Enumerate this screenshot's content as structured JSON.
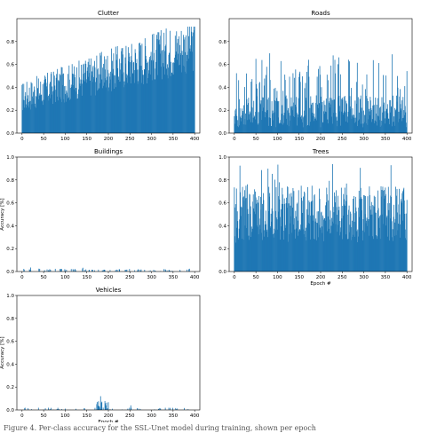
{
  "figure": {
    "caption": "Figure 4. Per-class accuracy for the SSL-Unet model during training, shown per epoch",
    "bar_color": "#1f77b4"
  },
  "chart_data": [
    {
      "type": "bar",
      "title": "Clutter",
      "xlabel": "",
      "ylabel": "",
      "xlim": [
        -12,
        412
      ],
      "ylim": [
        0,
        1.0
      ],
      "xticks": [
        0,
        50,
        100,
        150,
        200,
        250,
        300,
        350,
        400
      ],
      "yticks": [
        0.0,
        0.2,
        0.4,
        0.6,
        0.8
      ],
      "series": [
        {
          "x": "epochs 0-400",
          "y_baseline": 0.28,
          "y_range": [
            0.05,
            0.92
          ],
          "trend": "rises from ~0.3 to ~0.6 over training"
        }
      ]
    },
    {
      "type": "bar",
      "title": "Roads",
      "xlabel": "",
      "ylabel": "",
      "xlim": [
        -12,
        412
      ],
      "ylim": [
        0,
        1.0
      ],
      "xticks": [
        0,
        50,
        100,
        150,
        200,
        250,
        300,
        350,
        400
      ],
      "yticks": [
        0.0,
        0.2,
        0.4,
        0.6,
        0.8
      ],
      "series": [
        {
          "x": "epochs 0-400",
          "y_baseline": 0.15,
          "y_range": [
            0.0,
            0.72
          ],
          "trend": "noisy, mostly 0.1-0.4"
        }
      ]
    },
    {
      "type": "bar",
      "title": "Buildings",
      "xlabel": "",
      "ylabel": "Accuracy [%]",
      "xlim": [
        -12,
        412
      ],
      "ylim": [
        0,
        1.0
      ],
      "xticks": [
        0,
        50,
        100,
        150,
        200,
        250,
        300,
        350,
        400
      ],
      "yticks": [
        0.0,
        0.2,
        0.4,
        0.6,
        0.8,
        1.0
      ],
      "series": [
        {
          "x": "epochs 0-400",
          "y_range": [
            0.0,
            0.04
          ],
          "trend": "near zero"
        }
      ]
    },
    {
      "type": "bar",
      "title": "Trees",
      "xlabel": "Epoch #",
      "ylabel": "",
      "xlim": [
        -12,
        412
      ],
      "ylim": [
        0,
        1.0
      ],
      "xticks": [
        0,
        50,
        100,
        150,
        200,
        250,
        300,
        350,
        400
      ],
      "yticks": [
        0.0,
        0.2,
        0.4,
        0.6,
        0.8,
        1.0
      ],
      "series": [
        {
          "x": "epochs 0-400",
          "y_baseline": 0.4,
          "y_range": [
            0.1,
            0.95
          ],
          "trend": "mostly 0.3-0.8"
        }
      ]
    },
    {
      "type": "bar",
      "title": "Vehicles",
      "xlabel": "Epoch #",
      "ylabel": "Accuracy [%]",
      "xlim": [
        -12,
        412
      ],
      "ylim": [
        0,
        1.0
      ],
      "xticks": [
        0,
        50,
        100,
        150,
        200,
        250,
        300,
        350,
        400
      ],
      "yticks": [
        0.0,
        0.2,
        0.4,
        0.6,
        0.8,
        1.0
      ],
      "series": [
        {
          "x": "epochs 0-400",
          "y_range": [
            0.0,
            0.13
          ],
          "trend": "near zero, small spike ~0.13 at epoch ~180"
        }
      ]
    }
  ]
}
